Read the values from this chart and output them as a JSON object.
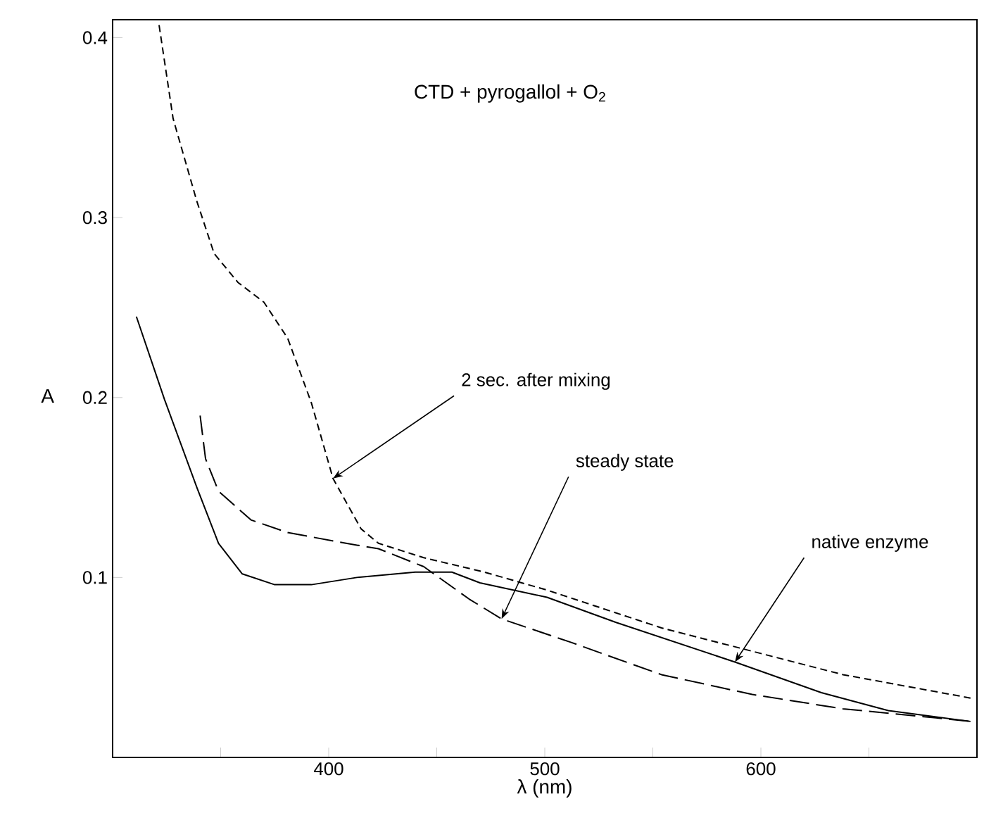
{
  "chart_data": {
    "type": "line",
    "title": "CTD + pyrogallol + O$_{2}$",
    "xlabel": "λ (nm)",
    "ylabel": "A",
    "xlim": [
      300,
      700
    ],
    "ylim": [
      0,
      0.41
    ],
    "xticks": [
      {
        "value": 350,
        "label": null
      },
      400,
      {
        "value": 450,
        "label": null
      },
      500,
      {
        "value": 550,
        "label": null
      },
      600,
      {
        "value": 650,
        "label": null
      }
    ],
    "yticks": [
      0.1,
      0.2,
      0.3,
      0.4
    ],
    "grid": false,
    "series": [
      {
        "color": "#000000",
        "line_style": "solid",
        "x": [
          311,
          324,
          339,
          349,
          360,
          375,
          392,
          413,
          440,
          457,
          470,
          501,
          533,
          588,
          628,
          659,
          697
        ],
        "values": [
          0.245,
          0.199,
          0.15,
          0.119,
          0.102,
          0.096,
          0.096,
          0.1,
          0.103,
          0.103,
          0.097,
          0.089,
          0.075,
          0.053,
          0.036,
          0.026,
          0.02
        ]
      },
      {
        "color": "#000000",
        "line_style": "dashed",
        "x": [
          321.5,
          328,
          339,
          347,
          358,
          370,
          381,
          392,
          402,
          415,
          423,
          444,
          472,
          501,
          554,
          596,
          638,
          697
        ],
        "values": [
          0.407,
          0.355,
          0.309,
          0.28,
          0.264,
          0.253,
          0.233,
          0.197,
          0.155,
          0.127,
          0.119,
          0.111,
          0.103,
          0.093,
          0.072,
          0.059,
          0.046,
          0.033
        ]
      },
      {
        "color": "#000000",
        "line_style": "dashed",
        "x": [
          340.5,
          343,
          349,
          364,
          381,
          408,
          423,
          444,
          465,
          480,
          512,
          554,
          596,
          638,
          681,
          697
        ],
        "values": [
          0.19,
          0.166,
          0.148,
          0.132,
          0.125,
          0.119,
          0.116,
          0.106,
          0.088,
          0.077,
          0.064,
          0.046,
          0.035,
          0.027,
          0.022,
          0.02
        ]
      }
    ],
    "annotations": [
      {
        "text": "2 sec. after mixing",
        "x": 402,
        "y": 0.155
      },
      {
        "text": "steady state",
        "x": 480,
        "y": 0.077
      },
      {
        "text": "native enzyme",
        "x": 588,
        "y": 0.053
      }
    ]
  }
}
